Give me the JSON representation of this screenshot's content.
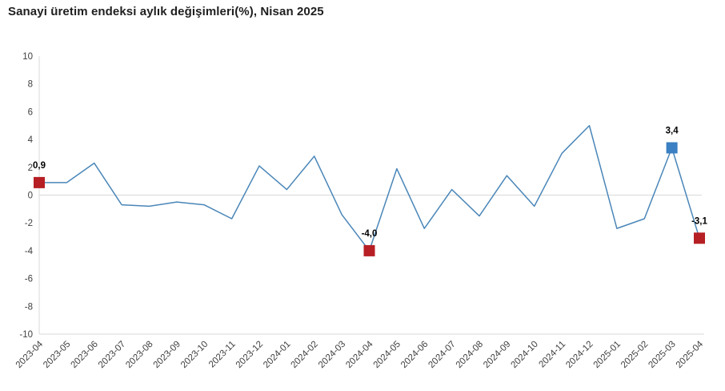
{
  "title": "Sanayi üretim endeksi aylık değişimleri(%), Nisan 2025",
  "chart_data": {
    "type": "line",
    "title": "Sanayi üretim endeksi aylık değişimleri(%), Nisan 2025",
    "xlabel": "",
    "ylabel": "",
    "ylim": [
      -10,
      10
    ],
    "ytick_step": 2,
    "grid": "zero-line-only",
    "legend": "none",
    "decimal_separator": ",",
    "categories": [
      "2023-04",
      "2023-05",
      "2023-06",
      "2023-07",
      "2023-08",
      "2023-09",
      "2023-10",
      "2023-11",
      "2023-12",
      "2024-01",
      "2024-02",
      "2024-03",
      "2024-04",
      "2024-05",
      "2024-06",
      "2024-07",
      "2024-08",
      "2024-09",
      "2024-10",
      "2024-11",
      "2024-12",
      "2025-01",
      "2025-02",
      "2025-03",
      "2025-04"
    ],
    "values": [
      0.9,
      0.9,
      2.3,
      -0.7,
      -0.8,
      -0.5,
      -0.7,
      -1.7,
      2.1,
      0.4,
      2.8,
      -1.4,
      -4.0,
      1.9,
      -2.4,
      0.4,
      -1.5,
      1.4,
      -0.8,
      3.0,
      5.0,
      -2.4,
      -1.7,
      3.4,
      -3.1
    ],
    "annotations": [
      {
        "category": "2023-04",
        "index": 0,
        "value": 0.9,
        "label": "0,9",
        "marker": "square",
        "marker_color": "#b61f24"
      },
      {
        "category": "2024-04",
        "index": 12,
        "value": -4.0,
        "label": "-4,0",
        "marker": "square",
        "marker_color": "#b61f24"
      },
      {
        "category": "2025-03",
        "index": 23,
        "value": 3.4,
        "label": "3,4",
        "marker": "square",
        "marker_color": "#3a80c2"
      },
      {
        "category": "2025-04",
        "index": 24,
        "value": -3.1,
        "label": "-3,1",
        "marker": "square",
        "marker_color": "#b61f24"
      }
    ],
    "colors": {
      "line": "#4a86b8",
      "axis": "#d9d9d9",
      "zero_gridline": "#d9d9d9",
      "tick_text": "#404040",
      "annotation_text": "#000000"
    }
  }
}
